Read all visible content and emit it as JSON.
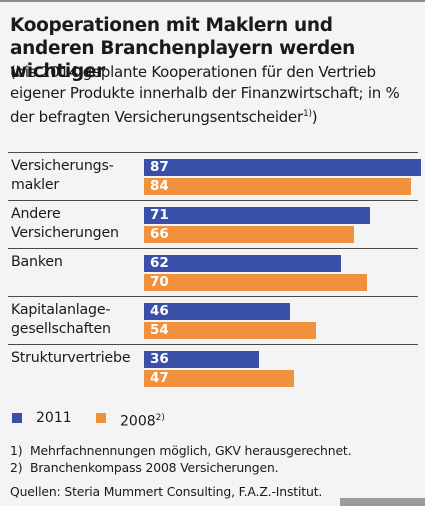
{
  "title": "Kooperationen mit Maklern und anderen Branchenplayern werden wichtiger",
  "subtitle": {
    "text": "(bis 2014 geplante Kooperationen für den Vertrieb eigener Produkte innerhalb der Finanzwirtschaft; in % der befragten Versicherungsentscheider",
    "footnote_mark": "1)",
    "close": ")"
  },
  "colors": {
    "series_2011": "#3a4fa8",
    "series_2008": "#f0913d"
  },
  "chart_data": {
    "type": "bar",
    "orientation": "horizontal",
    "categories": [
      "Versicherungs-\nmakler",
      "Andere\nVersicherungen",
      "Banken",
      "Kapitalanlage-\ngesellschaften",
      "Strukturvertriebe"
    ],
    "series": [
      {
        "name": "2011",
        "values": [
          87,
          71,
          62,
          46,
          36
        ]
      },
      {
        "name": "2008",
        "values": [
          84,
          66,
          70,
          54,
          47
        ]
      }
    ],
    "xlim": [
      0,
      87
    ],
    "data_labels": true,
    "legend_position": "bottom-left"
  },
  "legend": {
    "items": [
      {
        "label": "2011",
        "sup": ""
      },
      {
        "label": "2008",
        "sup": "2)"
      }
    ]
  },
  "footnotes": [
    {
      "mark": "1)",
      "text": "Mehrfachnennungen möglich, GKV herausgerechnet."
    },
    {
      "mark": "2)",
      "text": "Branchenkompass 2008 Versicherungen."
    }
  ],
  "source": "Quellen: Steria Mummert Consulting, F.A.Z.-Institut."
}
